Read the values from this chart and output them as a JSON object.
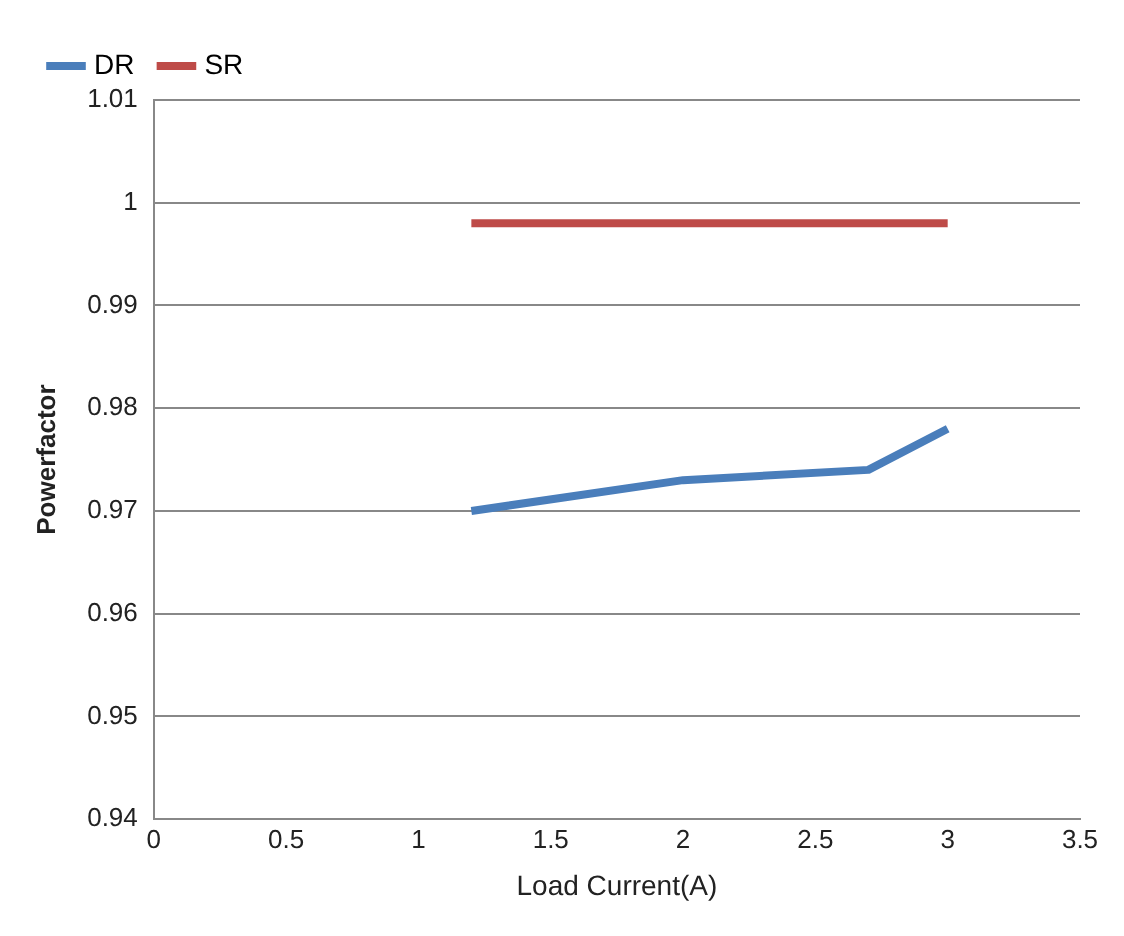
{
  "chart_data": {
    "type": "line",
    "xlabel": "Load Current(A)",
    "ylabel": "Powerfactor",
    "xlim": [
      0,
      3.5
    ],
    "xticks": [
      0,
      0.5,
      1,
      1.5,
      2,
      2.5,
      3,
      3.5
    ],
    "ylim": [
      0.94,
      1.01
    ],
    "yticks": [
      0.94,
      0.95,
      0.96,
      0.97,
      0.98,
      0.99,
      1,
      1.01
    ],
    "grid": "y",
    "legend": "top left",
    "marker": "none",
    "series": [
      {
        "name": "DR",
        "color": "#4a7ebb",
        "x": [
          1.2,
          2,
          2.7,
          3
        ],
        "values": [
          0.97,
          0.973,
          0.974,
          0.978
        ]
      },
      {
        "name": "SR",
        "color": "#be4b48",
        "x": [
          1.2,
          3
        ],
        "values": [
          0.998,
          0.998
        ]
      }
    ]
  }
}
